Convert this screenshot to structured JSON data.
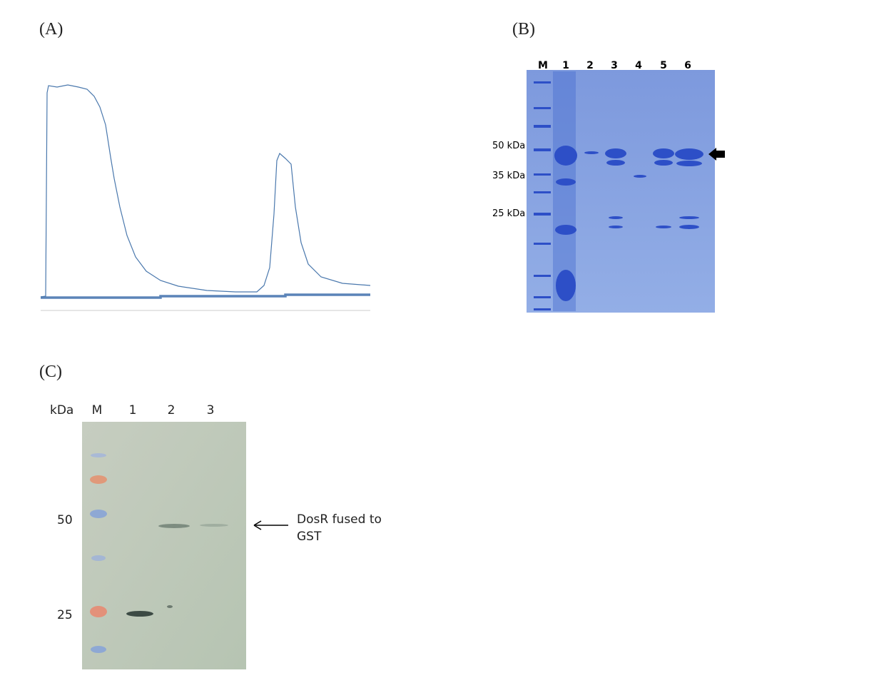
{
  "panels": [
    {
      "label": "(A)"
    },
    {
      "label": "(B)",
      "lanes": [
        "M",
        "1",
        "2",
        "3",
        "4",
        "5",
        "6"
      ],
      "markers": [
        "50 kDa",
        "35 kDa",
        "25 kDa"
      ]
    },
    {
      "label": "(C)",
      "unit": "kDa",
      "lanes": [
        "M",
        "1",
        "2",
        "3"
      ],
      "markers": [
        "50",
        "25"
      ],
      "annotation": [
        "DosR fused to",
        "GST"
      ]
    }
  ]
}
